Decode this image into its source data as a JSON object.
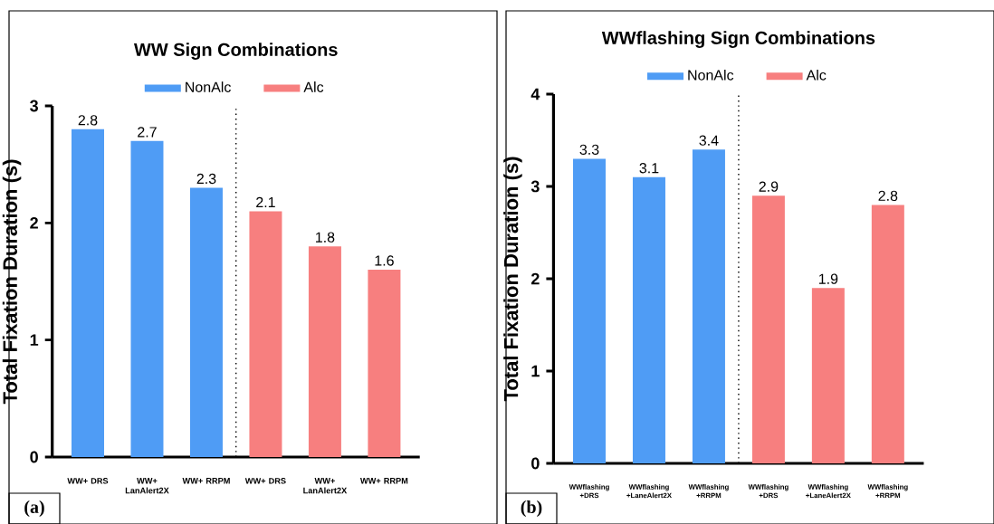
{
  "chart_data": [
    {
      "type": "bar",
      "title": "WW Sign Combinations",
      "ylabel": "Total Fixation Duration (s)",
      "categories": [
        "WW+ DRS",
        "WW+ LanAlert2X",
        "WW+ RRPM",
        "WW+ DRS",
        "WW+ LanAlert2X",
        "WW+ RRPM"
      ],
      "series": [
        {
          "name": "NonAlc",
          "color": "#4f9cf5",
          "values": [
            2.8,
            2.7,
            2.3,
            null,
            null,
            null
          ]
        },
        {
          "name": "Alc",
          "color": "#f77f7f",
          "values": [
            null,
            null,
            null,
            2.1,
            1.8,
            1.6
          ]
        }
      ],
      "ylim": [
        0,
        3
      ],
      "yticks": [
        0,
        1,
        2,
        3
      ],
      "legend": "top",
      "data_labels": true,
      "annotations": [
        "(a)"
      ]
    },
    {
      "type": "bar",
      "title": "WWflashing Sign Combinations",
      "ylabel": "Total Fixation Duration (s)",
      "categories": [
        "WWflashing +DRS",
        "WWflashing +LaneAlert2X",
        "WWflashing +RRPM",
        "WWflashing +DRS",
        "WWflashing +LaneAlert2X",
        "WWflashing +RRPM"
      ],
      "series": [
        {
          "name": "NonAlc",
          "color": "#4f9cf5",
          "values": [
            3.3,
            3.1,
            3.4,
            null,
            null,
            null
          ]
        },
        {
          "name": "Alc",
          "color": "#f77f7f",
          "values": [
            null,
            null,
            null,
            2.9,
            1.9,
            2.8
          ]
        }
      ],
      "ylim": [
        0,
        4
      ],
      "yticks": [
        0,
        1,
        2,
        3,
        4
      ],
      "legend": "top",
      "data_labels": true,
      "annotations": [
        "(b)"
      ]
    }
  ]
}
